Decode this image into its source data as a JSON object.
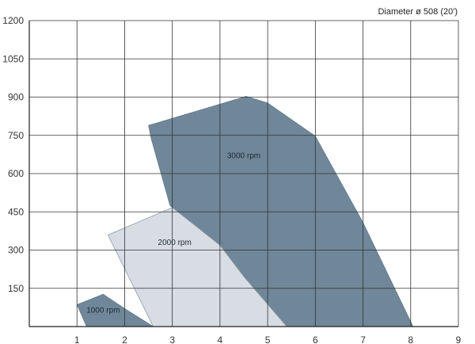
{
  "chart_data": {
    "type": "area",
    "title": "Diameter ø 508 (20')",
    "xlabel": "",
    "ylabel": "",
    "xlim": [
      0,
      9
    ],
    "ylim": [
      0,
      1200
    ],
    "x_ticks": [
      "1",
      "2",
      "3",
      "4",
      "5",
      "6",
      "7",
      "8",
      "9"
    ],
    "y_ticks": [
      "150",
      "300",
      "450",
      "600",
      "750",
      "900",
      "1050",
      "1200"
    ],
    "grid": true,
    "series": [
      {
        "name": "3000 rpm",
        "color": "#6f8799",
        "points": [
          [
            2.5,
            789
          ],
          [
            4.55,
            903
          ],
          [
            5.0,
            877
          ],
          [
            6.0,
            747
          ],
          [
            7.0,
            408
          ],
          [
            8.05,
            0
          ],
          [
            5.4,
            0
          ],
          [
            4.5,
            196
          ],
          [
            4.0,
            319
          ],
          [
            3.0,
            467
          ],
          [
            2.95,
            475
          ],
          [
            2.55,
            741
          ]
        ]
      },
      {
        "name": "2000 rpm",
        "color": "#d8dde3",
        "points": [
          [
            1.65,
            359
          ],
          [
            3.0,
            467
          ],
          [
            4.0,
            319
          ],
          [
            4.5,
            196
          ],
          [
            5.4,
            0
          ],
          [
            2.6,
            0
          ]
        ]
      },
      {
        "name": "1000 rpm",
        "color": "#6f8799",
        "points": [
          [
            1.0,
            86
          ],
          [
            1.55,
            127
          ],
          [
            2.0,
            71
          ],
          [
            2.6,
            0
          ],
          [
            1.2,
            0
          ]
        ]
      }
    ]
  }
}
